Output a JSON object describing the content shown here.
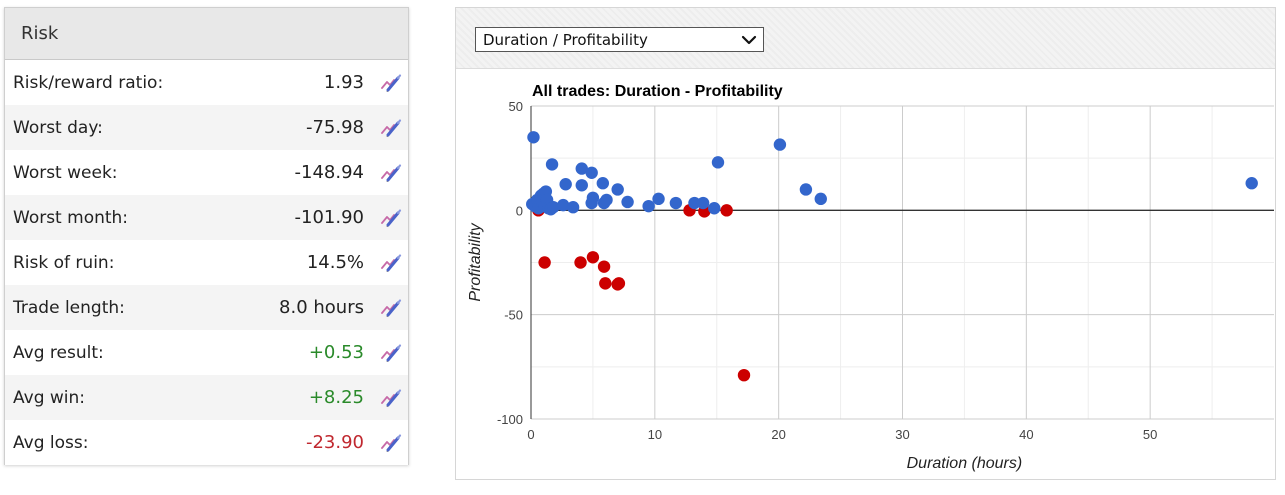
{
  "risk": {
    "title": "Risk",
    "rows": [
      {
        "label": "Risk/reward ratio:",
        "value": "1.93",
        "tone": "neutral"
      },
      {
        "label": "Worst day:",
        "value": "-75.98",
        "tone": "neutral"
      },
      {
        "label": "Worst week:",
        "value": "-148.94",
        "tone": "neutral"
      },
      {
        "label": "Worst month:",
        "value": "-101.90",
        "tone": "neutral"
      },
      {
        "label": "Risk of ruin:",
        "value": "14.5%",
        "tone": "neutral"
      },
      {
        "label": "Trade length:",
        "value": "8.0 hours",
        "tone": "neutral"
      },
      {
        "label": "Avg result:",
        "value": "+0.53",
        "tone": "pos"
      },
      {
        "label": "Avg win:",
        "value": "+8.25",
        "tone": "pos"
      },
      {
        "label": "Avg loss:",
        "value": "-23.90",
        "tone": "neg"
      }
    ],
    "edit_icon": "chart-edit-icon"
  },
  "chart_panel": {
    "selector_value": "Duration / Profitability"
  },
  "colors": {
    "win": "#3366cc",
    "loss": "#cc0000",
    "positive_text": "#2a8a2a",
    "negative_text": "#c0282f"
  },
  "chart_data": {
    "type": "scatter",
    "title": "All trades: Duration - Profitability",
    "xlabel": "Duration (hours)",
    "ylabel": "Profitability",
    "xlim": [
      0,
      60
    ],
    "ylim": [
      -100,
      50
    ],
    "xticks": [
      0,
      10,
      20,
      30,
      40,
      50
    ],
    "yticks": [
      50,
      0,
      -50,
      -100
    ],
    "grid": true,
    "legend": "none",
    "series": [
      {
        "color": "#3366cc",
        "points": [
          [
            0.2,
            35
          ],
          [
            0.1,
            3
          ],
          [
            0.3,
            2
          ],
          [
            0.5,
            5
          ],
          [
            0.6,
            1
          ],
          [
            0.8,
            7
          ],
          [
            0.9,
            4
          ],
          [
            1.0,
            8
          ],
          [
            1.1,
            2
          ],
          [
            1.2,
            9
          ],
          [
            1.3,
            5
          ],
          [
            1.4,
            1
          ],
          [
            1.6,
            0.5
          ],
          [
            1.8,
            1.5
          ],
          [
            1.7,
            22
          ],
          [
            2.6,
            2.5
          ],
          [
            2.8,
            12.5
          ],
          [
            3.4,
            1.5
          ],
          [
            4.1,
            20
          ],
          [
            4.1,
            12
          ],
          [
            4.9,
            18
          ],
          [
            5.0,
            6
          ],
          [
            4.9,
            3.5
          ],
          [
            5.8,
            13
          ],
          [
            5.9,
            3.5
          ],
          [
            6.1,
            5
          ],
          [
            7.0,
            10
          ],
          [
            7.8,
            4
          ],
          [
            9.5,
            2
          ],
          [
            10.3,
            5.5
          ],
          [
            11.7,
            3.5
          ],
          [
            13.2,
            3.5
          ],
          [
            13.9,
            3.5
          ],
          [
            14.8,
            1
          ],
          [
            15.1,
            23
          ],
          [
            20.1,
            31.5
          ],
          [
            22.2,
            10
          ],
          [
            23.4,
            5.5
          ],
          [
            58.2,
            13
          ]
        ]
      },
      {
        "color": "#cc0000",
        "points": [
          [
            0.6,
            0
          ],
          [
            1.1,
            -25
          ],
          [
            4.0,
            -25
          ],
          [
            5.0,
            -22.5
          ],
          [
            5.9,
            -27
          ],
          [
            6.0,
            -35
          ],
          [
            7.0,
            -35.5
          ],
          [
            7.1,
            -35
          ],
          [
            12.8,
            0
          ],
          [
            14.0,
            -0.5
          ],
          [
            15.8,
            0
          ],
          [
            17.2,
            -79
          ]
        ]
      }
    ]
  }
}
